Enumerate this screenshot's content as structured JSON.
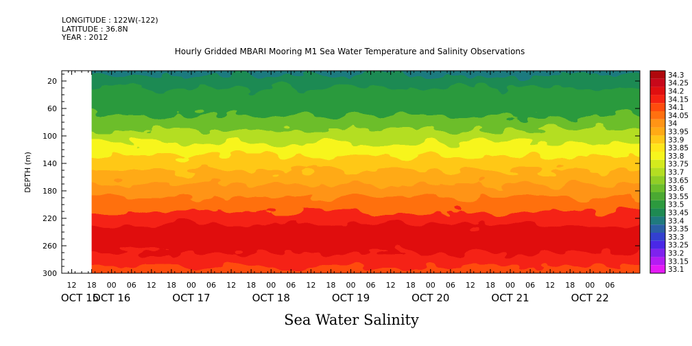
{
  "header": {
    "longitude": "LONGITUDE : 122W(-122)",
    "latitude": "LATITUDE : 36.8N",
    "year": "YEAR : 2012"
  },
  "chart_data": {
    "type": "heatmap",
    "title": "Hourly Gridded MBARI Mooring M1 Sea Water Temperature and Salinity Observations",
    "xlabel": "Sea Water Salinity",
    "ylabel": "DEPTH (m)",
    "y_axis": {
      "ticks": [
        20,
        60,
        100,
        140,
        180,
        220,
        260,
        300
      ],
      "range": [
        5,
        300
      ],
      "inverted": true
    },
    "x_axis": {
      "hour_labels": [
        "12",
        "18",
        "00",
        "06",
        "12",
        "18",
        "00",
        "06",
        "12",
        "18",
        "00",
        "06",
        "12",
        "18",
        "00",
        "06",
        "12",
        "18",
        "00",
        "06",
        "12",
        "18",
        "00",
        "06",
        "12",
        "18",
        "00",
        "06"
      ],
      "hour_labels_start": "2012-10-15T12:00",
      "hour_label_step_hours": 6,
      "day_labels": [
        "OCT 15",
        "OCT 16",
        "OCT 17",
        "OCT 18",
        "OCT 19",
        "OCT 20",
        "OCT 21",
        "OCT 22"
      ],
      "range": [
        "2012-10-15T09:00",
        "2012-10-22T15:00"
      ]
    },
    "colorbar": {
      "levels": [
        "34.3",
        "34.25",
        "34.2",
        "34.15",
        "34.1",
        "34.05",
        "34",
        "33.95",
        "33.9",
        "33.85",
        "33.8",
        "33.75",
        "33.7",
        "33.65",
        "33.6",
        "33.55",
        "33.5",
        "33.45",
        "33.4",
        "33.35",
        "33.3",
        "33.25",
        "33.2",
        "33.15",
        "33.1"
      ],
      "colors": [
        "#b0080d",
        "#c8081a",
        "#e00f10",
        "#f52212",
        "#ff4c0d",
        "#ff7010",
        "#ff9415",
        "#ffaa15",
        "#ffc818",
        "#ffe61a",
        "#f7f51d",
        "#d4ea1d",
        "#b4de22",
        "#90ce26",
        "#6cbe2c",
        "#4ba932",
        "#2c9a3e",
        "#1e8a52",
        "#1f7a7e",
        "#2a5fa6",
        "#3340d0",
        "#4a28e6",
        "#7f22ee",
        "#b41cf3",
        "#e41af6"
      ]
    },
    "salinity_profile_by_depth": {
      "depths": [
        5,
        20,
        40,
        60,
        80,
        100,
        120,
        140,
        160,
        180,
        200,
        220,
        240,
        260,
        280,
        300
      ],
      "salinity": [
        33.42,
        33.46,
        33.48,
        33.52,
        33.6,
        33.68,
        33.78,
        33.88,
        33.95,
        34.0,
        34.07,
        34.13,
        34.18,
        34.22,
        34.16,
        34.1
      ]
    },
    "no_data": [
      {
        "x_from": "2012-10-15T09:00",
        "x_to": "2012-10-15T18:00",
        "depth_from": 5,
        "depth_to": 300
      }
    ]
  }
}
